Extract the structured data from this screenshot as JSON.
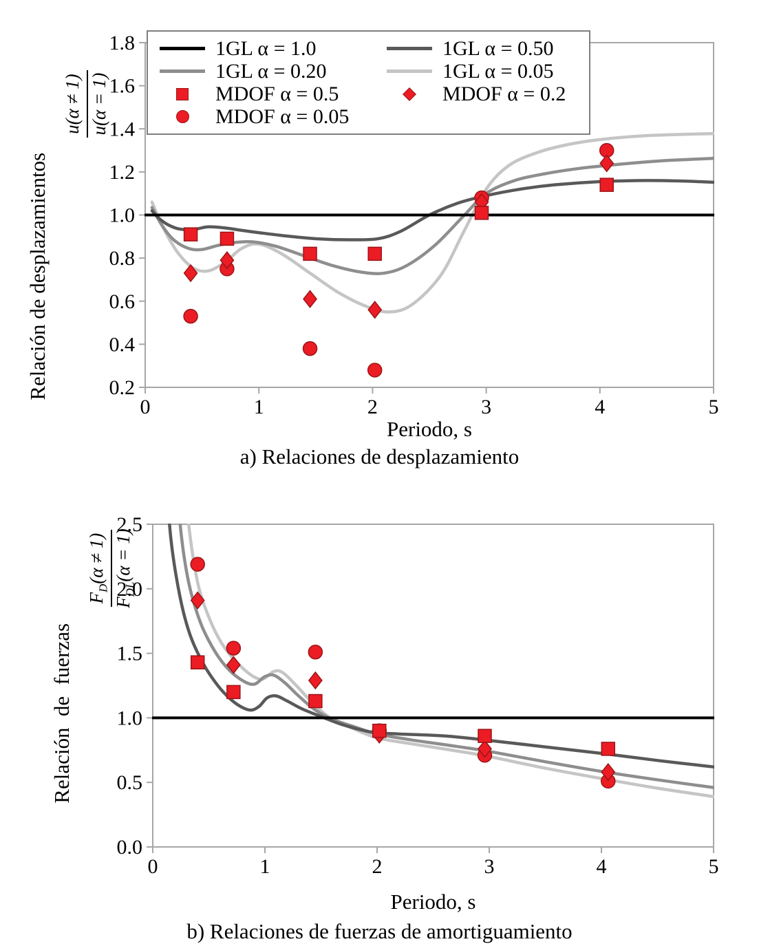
{
  "figure": {
    "background": "#ffffff"
  },
  "chart_data": [
    {
      "id": "chart-a",
      "type": "line",
      "caption": "a) Relaciones de desplazamiento",
      "xlabel": "Periodo, s",
      "ylabel_text": "Relación de desplazamientos",
      "ylabel_fraction": {
        "num_main": "u",
        "num_sub": "",
        "num_rest": "(α ≠ 1)",
        "den_main": "u",
        "den_sub": "",
        "den_rest": "(α = 1)"
      },
      "xlim": [
        0,
        5
      ],
      "ylim": [
        0.2,
        1.8
      ],
      "xticks": [
        "0",
        "1",
        "2",
        "3",
        "4",
        "5"
      ],
      "yticks": [
        "0.2",
        "0.4",
        "0.6",
        "0.8",
        "1.0",
        "1.2",
        "1.4",
        "1.6",
        "1.8"
      ],
      "grid": false,
      "frame_color": "#a6a6a6",
      "series": [
        {
          "name": "1GL α = 1.0",
          "color": "#000000",
          "width": 4,
          "points": [
            [
              0,
              1.0
            ],
            [
              5,
              1.0
            ]
          ]
        },
        {
          "name": "1GL α = 0.50",
          "color": "#595959",
          "width": 4.5,
          "points": [
            [
              0.06,
              1.02
            ],
            [
              0.12,
              0.985
            ],
            [
              0.2,
              0.955
            ],
            [
              0.3,
              0.935
            ],
            [
              0.42,
              0.932
            ],
            [
              0.55,
              0.945
            ],
            [
              0.7,
              0.94
            ],
            [
              0.9,
              0.925
            ],
            [
              1.2,
              0.905
            ],
            [
              1.5,
              0.89
            ],
            [
              1.8,
              0.885
            ],
            [
              2.05,
              0.89
            ],
            [
              2.25,
              0.925
            ],
            [
              2.5,
              1.0
            ],
            [
              2.75,
              1.055
            ],
            [
              3.0,
              1.09
            ],
            [
              3.3,
              1.12
            ],
            [
              3.6,
              1.14
            ],
            [
              4.0,
              1.155
            ],
            [
              4.4,
              1.16
            ],
            [
              4.7,
              1.158
            ],
            [
              5.0,
              1.152
            ]
          ]
        },
        {
          "name": "1GL α = 0.20",
          "color": "#8e8e8e",
          "width": 4.5,
          "points": [
            [
              0.06,
              1.035
            ],
            [
              0.15,
              0.95
            ],
            [
              0.25,
              0.885
            ],
            [
              0.38,
              0.845
            ],
            [
              0.5,
              0.84
            ],
            [
              0.65,
              0.86
            ],
            [
              0.8,
              0.873
            ],
            [
              0.95,
              0.875
            ],
            [
              1.15,
              0.855
            ],
            [
              1.4,
              0.81
            ],
            [
              1.65,
              0.765
            ],
            [
              1.9,
              0.735
            ],
            [
              2.1,
              0.73
            ],
            [
              2.3,
              0.765
            ],
            [
              2.55,
              0.86
            ],
            [
              2.8,
              0.995
            ],
            [
              3.0,
              1.1
            ],
            [
              3.25,
              1.16
            ],
            [
              3.5,
              1.19
            ],
            [
              3.8,
              1.215
            ],
            [
              4.1,
              1.232
            ],
            [
              4.5,
              1.25
            ],
            [
              5.0,
              1.263
            ]
          ]
        },
        {
          "name": "1GL α = 0.05",
          "color": "#c5c5c5",
          "width": 4.5,
          "points": [
            [
              0.06,
              1.06
            ],
            [
              0.15,
              0.95
            ],
            [
              0.28,
              0.83
            ],
            [
              0.42,
              0.755
            ],
            [
              0.55,
              0.74
            ],
            [
              0.7,
              0.78
            ],
            [
              0.85,
              0.845
            ],
            [
              1.0,
              0.865
            ],
            [
              1.2,
              0.82
            ],
            [
              1.45,
              0.73
            ],
            [
              1.7,
              0.64
            ],
            [
              1.95,
              0.575
            ],
            [
              2.15,
              0.55
            ],
            [
              2.35,
              0.585
            ],
            [
              2.6,
              0.72
            ],
            [
              2.8,
              0.92
            ],
            [
              3.0,
              1.12
            ],
            [
              3.2,
              1.23
            ],
            [
              3.45,
              1.29
            ],
            [
              3.7,
              1.325
            ],
            [
              4.0,
              1.35
            ],
            [
              4.4,
              1.368
            ],
            [
              5.0,
              1.378
            ]
          ]
        }
      ],
      "scatter": [
        {
          "name": "MDOF α = 0.5",
          "marker": "square",
          "color": "#ec1c24",
          "edge": "#9b1418",
          "points": [
            [
              0.4,
              0.91
            ],
            [
              0.72,
              0.89
            ],
            [
              1.45,
              0.82
            ],
            [
              2.02,
              0.82
            ],
            [
              2.96,
              1.01
            ],
            [
              4.06,
              1.14
            ]
          ]
        },
        {
          "name": "MDOF α = 0.2",
          "marker": "diamond",
          "color": "#ec1c24",
          "edge": "#9b1418",
          "points": [
            [
              0.4,
              0.73
            ],
            [
              0.72,
              0.79
            ],
            [
              1.45,
              0.61
            ],
            [
              2.02,
              0.56
            ],
            [
              2.96,
              1.06
            ],
            [
              4.06,
              1.24
            ]
          ]
        },
        {
          "name": "MDOF α = 0.05",
          "marker": "circle",
          "color": "#ec1c24",
          "edge": "#9b1418",
          "points": [
            [
              0.4,
              0.53
            ],
            [
              0.72,
              0.75
            ],
            [
              1.45,
              0.38
            ],
            [
              2.02,
              0.28
            ],
            [
              2.96,
              1.08
            ],
            [
              4.06,
              1.3
            ]
          ]
        }
      ],
      "legend": {
        "position": "top-left",
        "items": [
          {
            "label": "1GL α = 1.0",
            "swatch": "line",
            "color": "#000000"
          },
          {
            "label": "1GL α = 0.50",
            "swatch": "line",
            "color": "#595959"
          },
          {
            "label": "1GL α = 0.20",
            "swatch": "line",
            "color": "#8e8e8e"
          },
          {
            "label": "1GL α = 0.05",
            "swatch": "line",
            "color": "#c5c5c5"
          },
          {
            "label": "MDOF α = 0.5",
            "swatch": "square",
            "color": "#ec1c24",
            "edge": "#9b1418"
          },
          {
            "label": "MDOF α = 0.2",
            "swatch": "diamond",
            "color": "#ec1c24",
            "edge": "#9b1418"
          },
          {
            "label": "MDOF α = 0.05",
            "swatch": "circle",
            "color": "#ec1c24",
            "edge": "#9b1418"
          }
        ]
      }
    },
    {
      "id": "chart-b",
      "type": "line",
      "caption": "b) Relaciones de fuerzas de amortiguamiento",
      "xlabel": "Periodo, s",
      "ylabel_text": "Relación de fuerzas",
      "ylabel_fraction": {
        "num_main": "F",
        "num_sub": "D",
        "num_rest": "(α ≠ 1)",
        "den_main": "F",
        "den_sub": "DL",
        "den_rest": "(α = 1)"
      },
      "xlim": [
        0,
        5
      ],
      "ylim": [
        0.0,
        2.5
      ],
      "xticks": [
        "0",
        "1",
        "2",
        "3",
        "4",
        "5"
      ],
      "yticks": [
        "0.0",
        "0.5",
        "1.0",
        "1.5",
        "2.0",
        "2.5"
      ],
      "grid": false,
      "frame_color": "#a6a6a6",
      "series": [
        {
          "name": "1GL α = 1.0",
          "color": "#000000",
          "width": 4,
          "points": [
            [
              0,
              1.0
            ],
            [
              5,
              1.0
            ]
          ]
        },
        {
          "name": "1GL α = 0.50",
          "color": "#595959",
          "width": 4.5,
          "points": [
            [
              0.1,
              3.1
            ],
            [
              0.16,
              2.4
            ],
            [
              0.24,
              1.95
            ],
            [
              0.33,
              1.65
            ],
            [
              0.45,
              1.42
            ],
            [
              0.58,
              1.25
            ],
            [
              0.7,
              1.14
            ],
            [
              0.8,
              1.08
            ],
            [
              0.88,
              1.06
            ],
            [
              0.95,
              1.09
            ],
            [
              1.02,
              1.155
            ],
            [
              1.1,
              1.17
            ],
            [
              1.2,
              1.13
            ],
            [
              1.33,
              1.07
            ],
            [
              1.5,
              1.01
            ],
            [
              1.7,
              0.945
            ],
            [
              1.95,
              0.89
            ],
            [
              2.2,
              0.875
            ],
            [
              2.6,
              0.86
            ],
            [
              3.0,
              0.825
            ],
            [
              3.5,
              0.775
            ],
            [
              4.0,
              0.725
            ],
            [
              4.5,
              0.67
            ],
            [
              5.0,
              0.62
            ]
          ]
        },
        {
          "name": "1GL α = 0.20",
          "color": "#8e8e8e",
          "width": 4.5,
          "points": [
            [
              0.19,
              3.1
            ],
            [
              0.25,
              2.45
            ],
            [
              0.32,
              2.05
            ],
            [
              0.42,
              1.75
            ],
            [
              0.53,
              1.55
            ],
            [
              0.65,
              1.4
            ],
            [
              0.78,
              1.3
            ],
            [
              0.9,
              1.26
            ],
            [
              1.0,
              1.32
            ],
            [
              1.08,
              1.33
            ],
            [
              1.18,
              1.27
            ],
            [
              1.3,
              1.17
            ],
            [
              1.45,
              1.06
            ],
            [
              1.6,
              0.99
            ],
            [
              1.8,
              0.93
            ],
            [
              2.0,
              0.875
            ],
            [
              2.3,
              0.83
            ],
            [
              2.7,
              0.78
            ],
            [
              3.0,
              0.74
            ],
            [
              3.5,
              0.66
            ],
            [
              4.0,
              0.585
            ],
            [
              4.5,
              0.52
            ],
            [
              5.0,
              0.46
            ]
          ]
        },
        {
          "name": "1GL α = 0.05",
          "color": "#c5c5c5",
          "width": 4.5,
          "points": [
            [
              0.26,
              3.1
            ],
            [
              0.32,
              2.5
            ],
            [
              0.4,
              2.05
            ],
            [
              0.5,
              1.78
            ],
            [
              0.62,
              1.57
            ],
            [
              0.75,
              1.43
            ],
            [
              0.88,
              1.33
            ],
            [
              0.98,
              1.3
            ],
            [
              1.08,
              1.36
            ],
            [
              1.16,
              1.35
            ],
            [
              1.28,
              1.25
            ],
            [
              1.42,
              1.12
            ],
            [
              1.58,
              1.0
            ],
            [
              1.78,
              0.92
            ],
            [
              2.0,
              0.845
            ],
            [
              2.3,
              0.8
            ],
            [
              2.7,
              0.745
            ],
            [
              3.0,
              0.7
            ],
            [
              3.5,
              0.61
            ],
            [
              4.0,
              0.53
            ],
            [
              4.5,
              0.455
            ],
            [
              5.0,
              0.39
            ]
          ]
        }
      ],
      "scatter": [
        {
          "name": "MDOF α = 0.5",
          "marker": "square",
          "color": "#ec1c24",
          "edge": "#9b1418",
          "points": [
            [
              0.4,
              1.43
            ],
            [
              0.72,
              1.2
            ],
            [
              1.45,
              1.13
            ],
            [
              2.02,
              0.9
            ],
            [
              2.96,
              0.86
            ],
            [
              4.06,
              0.76
            ]
          ]
        },
        {
          "name": "MDOF α = 0.2",
          "marker": "diamond",
          "color": "#ec1c24",
          "edge": "#9b1418",
          "points": [
            [
              0.4,
              1.91
            ],
            [
              0.72,
              1.41
            ],
            [
              1.45,
              1.29
            ],
            [
              2.02,
              0.87
            ],
            [
              2.96,
              0.76
            ],
            [
              4.06,
              0.58
            ]
          ]
        },
        {
          "name": "MDOF α = 0.05",
          "marker": "circle",
          "color": "#ec1c24",
          "edge": "#9b1418",
          "points": [
            [
              0.4,
              2.19
            ],
            [
              0.72,
              1.54
            ],
            [
              1.45,
              1.51
            ],
            [
              2.02,
              0.9
            ],
            [
              2.96,
              0.71
            ],
            [
              4.06,
              0.51
            ]
          ]
        }
      ]
    }
  ]
}
